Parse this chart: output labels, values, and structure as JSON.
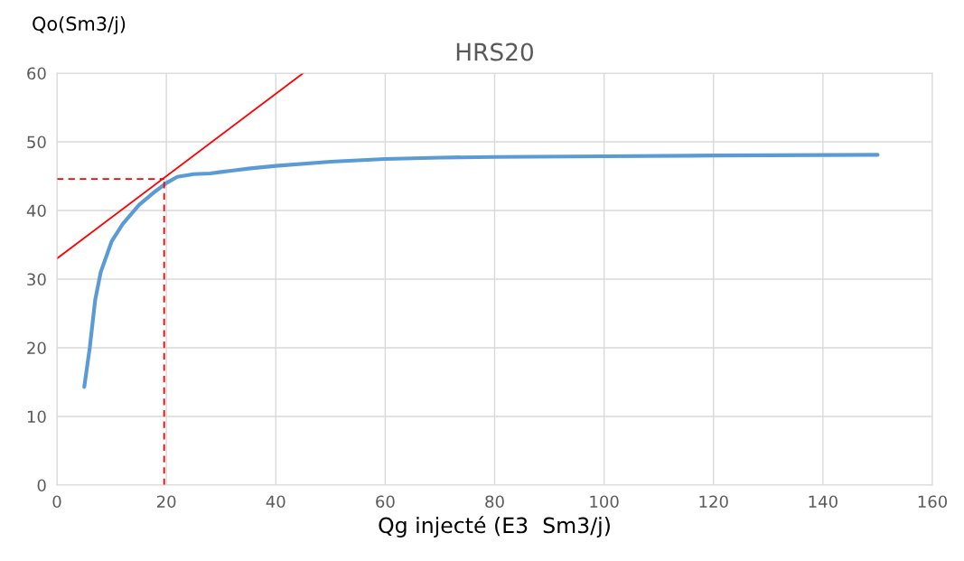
{
  "chart_data": {
    "type": "line",
    "title": "HRS20",
    "xlabel": "Qg injecté (E3  Sm3/j)",
    "ylabel": "Qo(Sm3/j)",
    "xlim": [
      0,
      160
    ],
    "xticks": [
      0,
      20,
      40,
      60,
      80,
      100,
      120,
      140,
      160
    ],
    "ylim": [
      0,
      60
    ],
    "yticks": [
      0,
      10,
      20,
      30,
      40,
      50,
      60
    ],
    "grid": true,
    "legend": false,
    "series": [
      {
        "color": "#5b9bd5",
        "x": [
          5,
          6,
          7,
          8,
          10,
          12,
          15,
          18,
          20,
          22,
          25,
          28,
          30,
          35,
          40,
          50,
          60,
          70,
          80,
          100,
          120,
          150
        ],
        "values": [
          14.3,
          20,
          27,
          31,
          35.5,
          38,
          40.8,
          42.8,
          44,
          44.9,
          45.3,
          45.4,
          45.6,
          46.1,
          46.5,
          47.1,
          47.5,
          47.7,
          47.8,
          47.9,
          48,
          48.1
        ]
      },
      {
        "color": "#ff0000",
        "x": [
          0,
          45
        ],
        "values": [
          33,
          60
        ]
      },
      {
        "color": "#ff0000",
        "line_style": "dashed",
        "x": [
          0,
          19.6
        ],
        "values": [
          44.6,
          44.6
        ]
      },
      {
        "color": "#ff0000",
        "line_style": "dashed",
        "x": [
          19.6,
          19.6
        ],
        "values": [
          0,
          44.6
        ]
      }
    ]
  }
}
